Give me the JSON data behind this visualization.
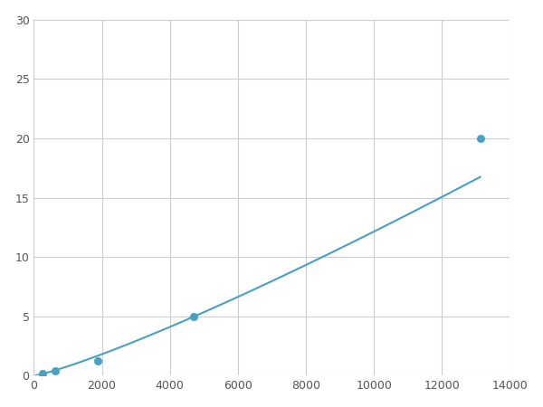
{
  "x_data": [
    250,
    625,
    1875,
    4688,
    13125
  ],
  "y_data": [
    0.2,
    0.4,
    1.25,
    5.0,
    20.0
  ],
  "line_color": "#4a9fc4",
  "marker_color": "#4a9fc4",
  "marker_size": 6,
  "line_width": 1.5,
  "xlim": [
    0,
    14000
  ],
  "ylim": [
    0,
    30
  ],
  "xticks": [
    0,
    2000,
    4000,
    6000,
    8000,
    10000,
    12000,
    14000
  ],
  "yticks": [
    0,
    5,
    10,
    15,
    20,
    25,
    30
  ],
  "grid_color": "#cccccc",
  "grid_linewidth": 0.8,
  "background_color": "#ffffff",
  "figure_width": 6.0,
  "figure_height": 4.5,
  "dpi": 100
}
